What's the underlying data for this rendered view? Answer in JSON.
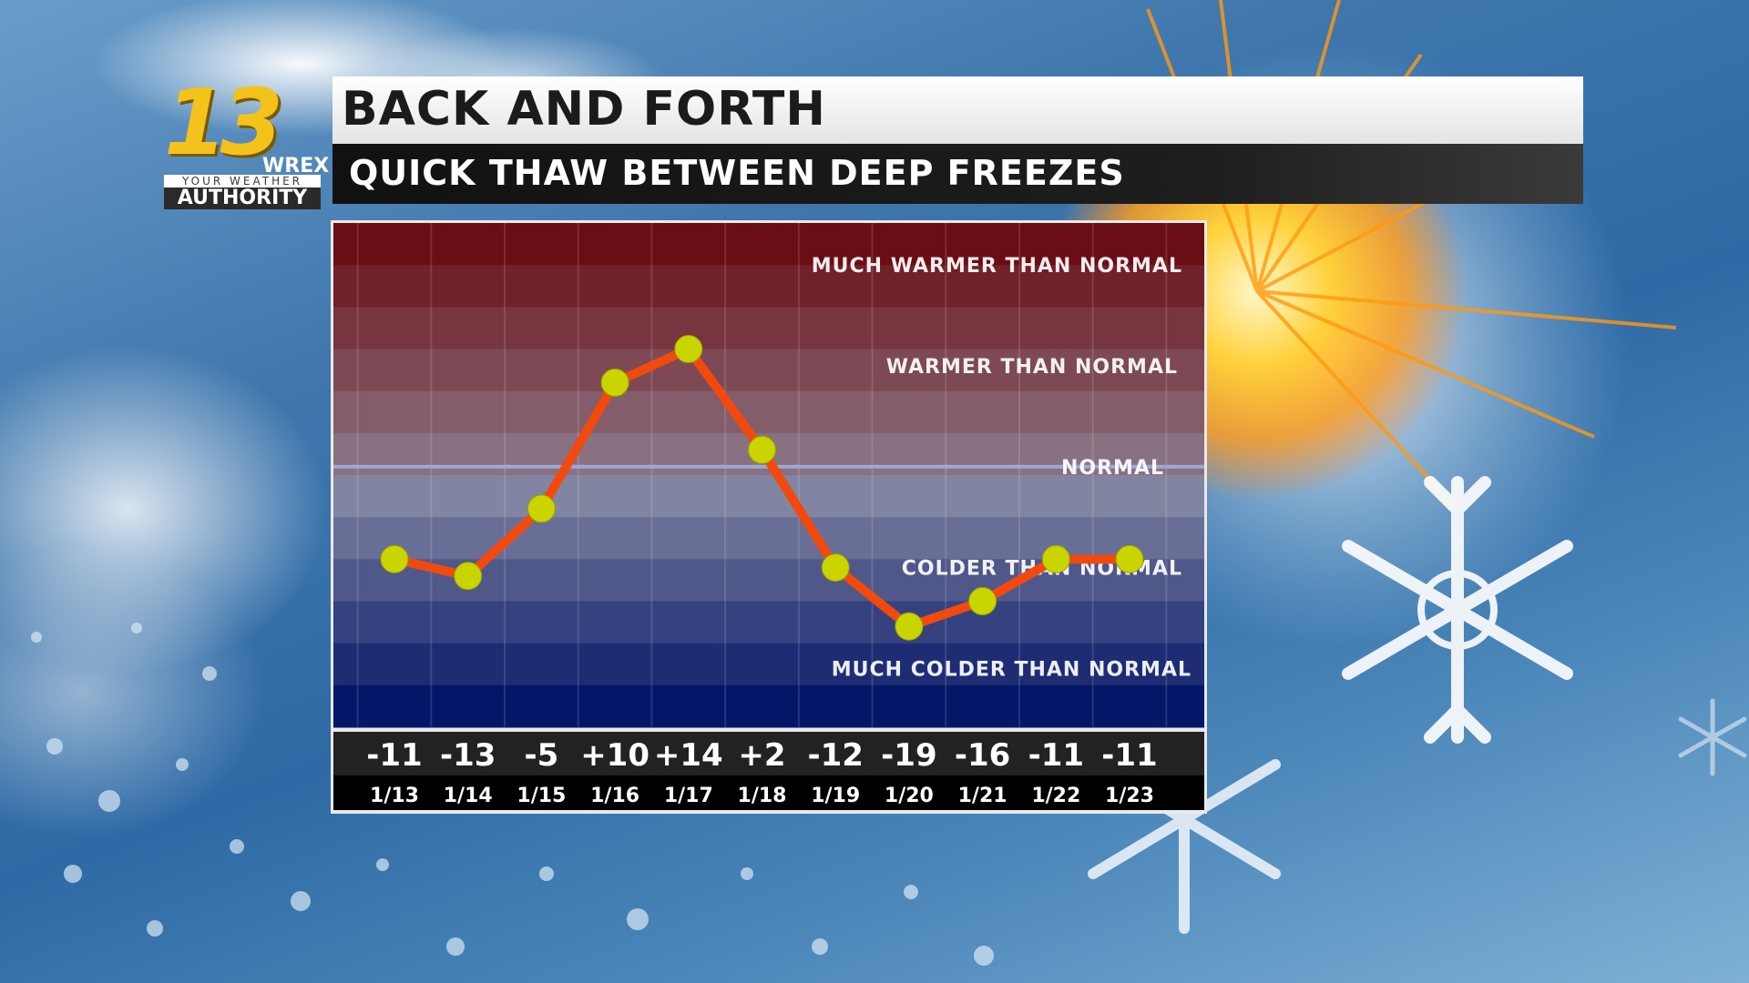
{
  "branding": {
    "station_number": "13",
    "station_call": "WREX",
    "tagline": "YOUR WEATHER",
    "tagline2": "AUTHORITY"
  },
  "header": {
    "title": "BACK AND FORTH",
    "subtitle": "QUICK THAW BETWEEN DEEP FREEZES"
  },
  "colors": {
    "line": "#f04a0e",
    "marker": "#c9d400",
    "warm_top": "#6a0d14",
    "cold_bottom": "#041668",
    "normal_line": "#9fa7d6"
  },
  "chart_data": {
    "type": "line",
    "categories": [
      "1/13",
      "1/14",
      "1/15",
      "1/16",
      "1/17",
      "1/18",
      "1/19",
      "1/20",
      "1/21",
      "1/22",
      "1/23"
    ],
    "value_labels": [
      "-11",
      "-13",
      "-5",
      "+10",
      "+14",
      "+2",
      "-12",
      "-19",
      "-16",
      "-11",
      "-11"
    ],
    "values": [
      -11,
      -13,
      -5,
      10,
      14,
      2,
      -12,
      -19,
      -16,
      -11,
      -11
    ],
    "ylim": [
      -31,
      29
    ],
    "grid": true,
    "bands": [
      {
        "label": "MUCH WARMER THAN NORMAL",
        "value": 24
      },
      {
        "label": "WARMER THAN NORMAL",
        "value": 12
      },
      {
        "label": "NORMAL",
        "value": 0
      },
      {
        "label": "COLDER THAN NORMAL",
        "value": -12
      },
      {
        "label": "MUCH COLDER THAN NORMAL",
        "value": -24
      }
    ],
    "normal_value": 0
  }
}
